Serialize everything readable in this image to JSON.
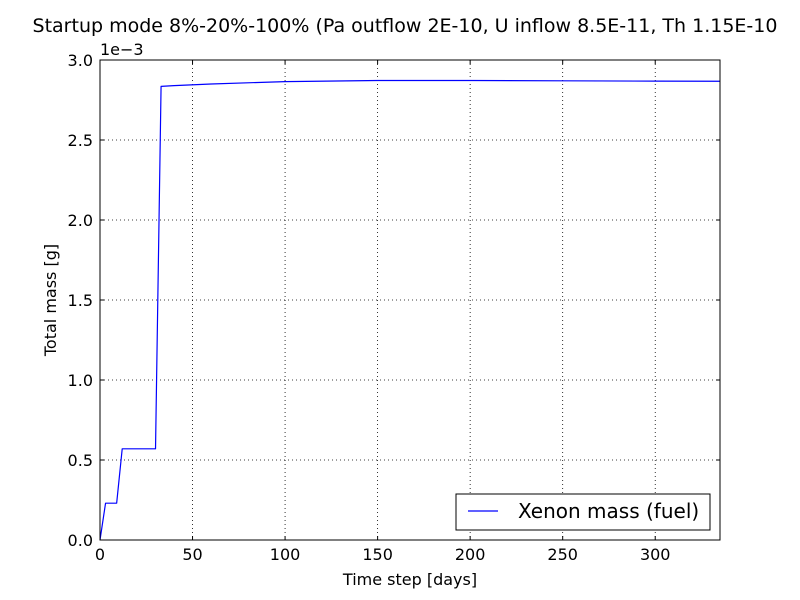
{
  "chart_data": {
    "type": "line",
    "title": "Startup mode 8%-20%-100% (Pa outflow 2E-10, U inflow 8.5E-11, Th 1.15E-10",
    "xlabel": "Time step [days]",
    "ylabel": "Total mass [g]",
    "y_multiplier_label": "1e−3",
    "xlim": [
      0,
      335
    ],
    "ylim": [
      0,
      0.003
    ],
    "x_ticks": [
      0,
      50,
      100,
      150,
      200,
      250,
      300
    ],
    "x_tick_labels": [
      "0",
      "50",
      "100",
      "150",
      "200",
      "250",
      "300"
    ],
    "y_ticks": [
      0,
      0.0005,
      0.001,
      0.0015,
      0.002,
      0.0025,
      0.003
    ],
    "y_tick_labels": [
      "0.0",
      "0.5",
      "1.0",
      "1.5",
      "2.0",
      "2.5",
      "3.0"
    ],
    "grid": true,
    "legend_position": "lower-right",
    "series": [
      {
        "name": "Xenon mass (fuel)",
        "color": "#0000ff",
        "x": [
          0,
          3,
          9,
          12,
          30,
          33,
          40,
          60,
          100,
          150,
          200,
          250,
          300,
          335
        ],
        "y": [
          0.0,
          0.00023,
          0.00023,
          0.00057,
          0.00057,
          0.002835,
          0.00284,
          0.00285,
          0.002865,
          0.002872,
          0.002872,
          0.00287,
          0.002868,
          0.002867
        ]
      }
    ]
  }
}
